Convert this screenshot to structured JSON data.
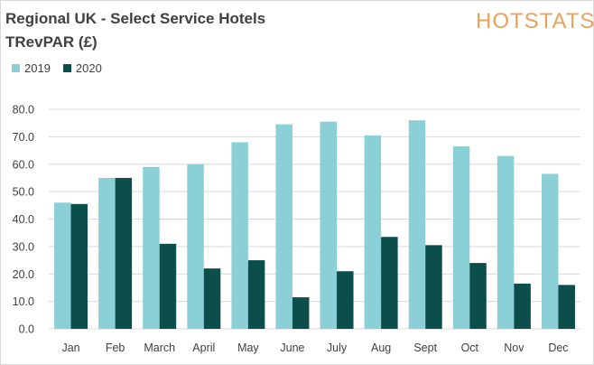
{
  "title": "Regional UK - Select Service Hotels",
  "subtitle": "TRevPAR (£)",
  "logo_text": "HOTSTATS",
  "colors": {
    "series_2019": "#8bd0d6",
    "series_2020": "#0b4e4c",
    "gridline": "#d9d9d9",
    "logo": "#e8a25a"
  },
  "chart_data": {
    "type": "bar",
    "title": "Regional UK - Select Service Hotels",
    "subtitle": "TRevPAR (£)",
    "categories": [
      "Jan",
      "Feb",
      "March",
      "April",
      "May",
      "June",
      "July",
      "Aug",
      "Sept",
      "Oct",
      "Nov",
      "Dec"
    ],
    "series": [
      {
        "name": "2019",
        "color": "#8bd0d6",
        "values": [
          46.0,
          55.0,
          59.0,
          60.0,
          68.0,
          74.5,
          75.5,
          70.5,
          76.0,
          66.5,
          63.0,
          56.5
        ]
      },
      {
        "name": "2020",
        "color": "#0b4e4c",
        "values": [
          45.5,
          55.0,
          31.0,
          22.0,
          25.0,
          11.5,
          21.0,
          33.5,
          30.5,
          24.0,
          16.5,
          16.0
        ]
      }
    ],
    "yticks": [
      "0.0",
      "10.0",
      "20.0",
      "30.0",
      "40.0",
      "50.0",
      "60.0",
      "70.0",
      "80.0"
    ],
    "ylim": [
      0,
      80
    ],
    "grid": true,
    "legend_position": "top-left"
  }
}
